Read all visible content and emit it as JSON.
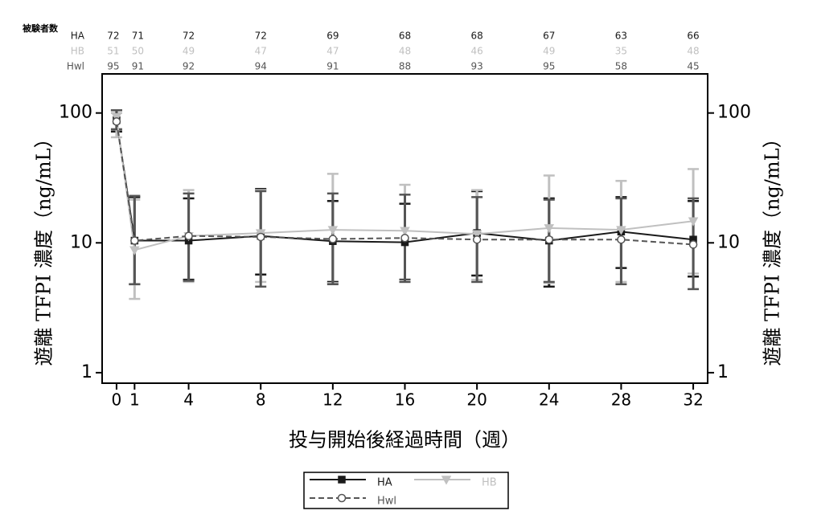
{
  "chart_data": {
    "type": "line",
    "subjects_title": "被験者数",
    "x_label": "投与開始後経過時間（週）",
    "y_label": "遊離 TFPI 濃度（ng/mL）",
    "y2_label": "遊離 TFPI 濃度（ng/mL）",
    "x": [
      0,
      1,
      4,
      8,
      12,
      16,
      20,
      24,
      28,
      32
    ],
    "xlim": [
      -0.8,
      32.8
    ],
    "xticks": [
      0,
      1,
      4,
      8,
      12,
      16,
      20,
      24,
      28,
      32
    ],
    "log_y": true,
    "ylim": [
      0.83,
      200
    ],
    "yticks": [
      1,
      10,
      100
    ],
    "y2lim": [
      0.83,
      200
    ],
    "y2ticks": [
      1,
      10,
      100
    ],
    "series": [
      {
        "name": "HA",
        "color": "#1a1a1a",
        "marker": "square",
        "dash": false,
        "values": [
          88,
          10.4,
          10.4,
          11.3,
          10.3,
          10.1,
          11.9,
          10.4,
          12.2,
          10.6
        ],
        "upper": [
          105,
          22.5,
          22,
          26,
          21,
          20,
          25,
          22,
          22.5,
          21
        ],
        "lower": [
          72,
          4.8,
          5.2,
          5.7,
          5.0,
          5.2,
          5.6,
          4.6,
          6.4,
          5.5
        ],
        "counts": [
          72,
          71,
          72,
          72,
          69,
          68,
          68,
          67,
          63,
          66
        ]
      },
      {
        "name": "HB",
        "color": "#c0c0c0",
        "marker": "triangle-down",
        "dash": false,
        "values": [
          93,
          8.8,
          11.3,
          11.9,
          12.6,
          12.4,
          11.7,
          13,
          12.6,
          14.7
        ],
        "upper": [
          100,
          21.5,
          25.5,
          25.5,
          34,
          28,
          25.5,
          33,
          30,
          37
        ],
        "lower": [
          65,
          3.7,
          5.0,
          5.0,
          4.9,
          5.1,
          5.2,
          4.9,
          5.0,
          5.8
        ],
        "counts": [
          51,
          50,
          49,
          47,
          47,
          48,
          46,
          49,
          35,
          48
        ]
      },
      {
        "name": "Hwl",
        "color": "#555555",
        "marker": "circle",
        "dash": true,
        "values": [
          86,
          10.4,
          11.3,
          11.1,
          10.7,
          10.9,
          10.6,
          10.6,
          10.6,
          9.7
        ],
        "upper": [
          105,
          23,
          24,
          25,
          24,
          23.5,
          22.5,
          21.5,
          22,
          22
        ],
        "lower": [
          75,
          4.8,
          5.1,
          4.6,
          4.8,
          5.0,
          5.0,
          5.0,
          4.8,
          4.4
        ],
        "counts": [
          95,
          91,
          92,
          94,
          91,
          88,
          93,
          95,
          58,
          45
        ]
      }
    ]
  }
}
